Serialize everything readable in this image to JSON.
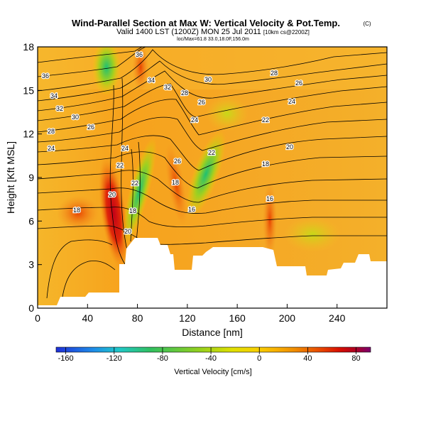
{
  "title": "Wind-Parallel Section at Max W: Vertical Velocity & Pot.Temp.",
  "copyright": "(C)",
  "valid_line": "Valid 1400 LST (1200Z) MON 25 Jul 2011",
  "model_tag": "[10km cs@2200Z]",
  "subtitle_small": "loc/Max=61.8 33.0,18.0F,156.0m",
  "chart_data": {
    "type": "heatmap",
    "xlabel": "Distance [nm]",
    "ylabel": "Height [Kft MSL]",
    "xlim": [
      0,
      280
    ],
    "ylim": [
      0,
      18
    ],
    "xticks": [
      "0",
      "40",
      "80",
      "120",
      "160",
      "200",
      "240"
    ],
    "yticks": [
      "0",
      "3",
      "6",
      "9",
      "12",
      "15",
      "18"
    ],
    "colorbar": {
      "label": "Vertical Velocity [cm/s]",
      "ticks": [
        "-160",
        "-120",
        "-80",
        "-40",
        "0",
        "40",
        "80"
      ],
      "range": [
        -168,
        92
      ],
      "colors": [
        "#1f2fd8",
        "#1e8ee8",
        "#20c8c8",
        "#30c060",
        "#90d020",
        "#e0e000",
        "#f8d000",
        "#f8b000",
        "#f08c00",
        "#e84800",
        "#d81000",
        "#b00020",
        "#7a0070"
      ]
    },
    "contour_labels": [
      "36",
      "34",
      "32",
      "30",
      "28",
      "26",
      "24",
      "22",
      "20",
      "18",
      "16"
    ],
    "colors": {
      "background_field": "#f6a21e",
      "updraft": "#d81000",
      "downdraft": "#30c060",
      "terrain": "#ffffff"
    }
  }
}
